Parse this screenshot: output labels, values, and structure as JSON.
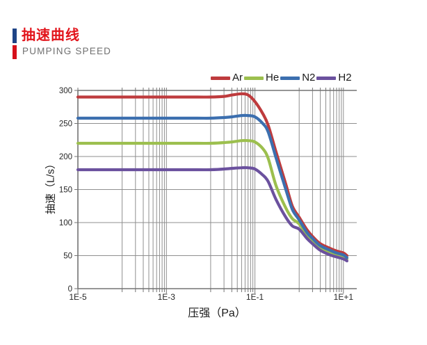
{
  "header": {
    "title": "抽速曲线",
    "subtitle": "PUMPING SPEED",
    "title_color": "#e2141b",
    "subtitle_color": "#707070",
    "accent_bar_blue": "#1e4486",
    "accent_bar_red": "#d6101b"
  },
  "chart_data": {
    "type": "line",
    "x_scale": "log",
    "xlabel": "压强（Pa）",
    "ylabel": "抽速（L/s）",
    "xlim": [
      1e-05,
      20
    ],
    "ylim": [
      0,
      300
    ],
    "x_major_ticks": [
      {
        "value": 1e-05,
        "label": "1E-5"
      },
      {
        "value": 0.001,
        "label": "1E-3"
      },
      {
        "value": 0.1,
        "label": "1E-1"
      },
      {
        "value": 10.0,
        "label": "1E+1"
      }
    ],
    "x_minor_gridline_decades": [
      -4,
      -2,
      0
    ],
    "y_ticks": [
      0,
      50,
      100,
      150,
      200,
      250,
      300
    ],
    "grid_on": true,
    "grid_color": "#8f8f8f",
    "frame_color": "#737373",
    "text_color": "#262626",
    "legend_position": "top-right",
    "x": [
      1e-05,
      0.0001,
      0.001,
      0.005,
      0.01,
      0.02,
      0.03,
      0.05,
      0.07,
      0.1,
      0.15,
      0.2,
      0.3,
      0.5,
      0.7,
      1,
      1.5,
      2,
      3,
      5,
      7,
      10,
      12
    ],
    "series": [
      {
        "name": "Ar",
        "color": "#be3b3d",
        "values": [
          290,
          290,
          290,
          290,
          290,
          291,
          293,
          295,
          293,
          283,
          265,
          247,
          207,
          158,
          125,
          108,
          89,
          79,
          68,
          61,
          57,
          54,
          50
        ]
      },
      {
        "name": "He",
        "color": "#9cbf4e",
        "values": [
          220,
          220,
          220,
          220,
          220,
          221,
          222,
          224,
          224,
          222,
          212,
          197,
          156,
          122,
          106,
          98,
          81,
          72,
          62,
          55,
          51,
          48,
          45
        ]
      },
      {
        "name": "N2",
        "color": "#3c6faf",
        "values": [
          258,
          258,
          258,
          258,
          258,
          259,
          260,
          262,
          262,
          260,
          250,
          237,
          198,
          150,
          120,
          104,
          85,
          76,
          65,
          58,
          54,
          51,
          47
        ]
      },
      {
        "name": "H2",
        "color": "#6b519e",
        "values": [
          180,
          180,
          180,
          180,
          180,
          181,
          182,
          183,
          183,
          181,
          172,
          162,
          135,
          108,
          95,
          90,
          76,
          68,
          58,
          51,
          48,
          45,
          42
        ]
      }
    ]
  }
}
